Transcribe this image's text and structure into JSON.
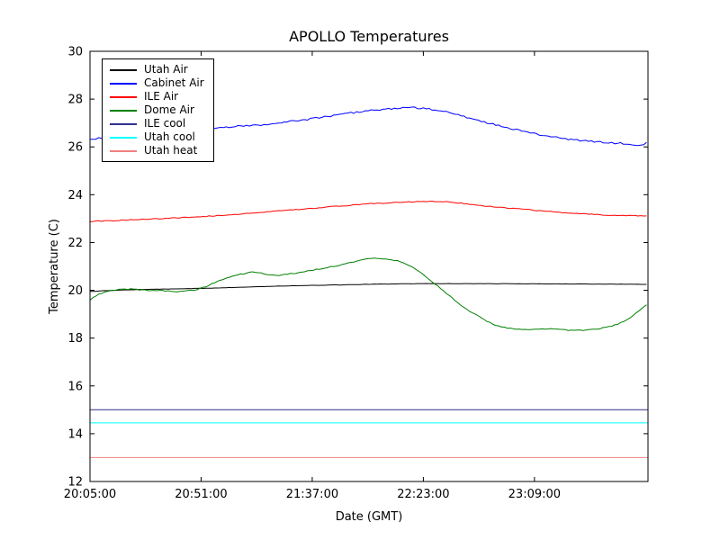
{
  "page": {
    "background": "#ffffff"
  },
  "chart_data": {
    "type": "line",
    "title": "APOLLO Temperatures",
    "xlabel": "Date (GMT)",
    "ylabel": "Temperature (C)",
    "x_unit": "minutes since 20:05:00 GMT",
    "xlim": [
      0,
      231
    ],
    "ylim": [
      12,
      30
    ],
    "grid": false,
    "legend_position": "upper-left",
    "x_ticks": [
      {
        "pos": 0,
        "label": "20:05:00"
      },
      {
        "pos": 46,
        "label": "20:51:00"
      },
      {
        "pos": 92,
        "label": "21:37:00"
      },
      {
        "pos": 138,
        "label": "22:23:00"
      },
      {
        "pos": 184,
        "label": "23:09:00"
      }
    ],
    "y_ticks": [
      {
        "pos": 12,
        "label": "12"
      },
      {
        "pos": 14,
        "label": "14"
      },
      {
        "pos": 16,
        "label": "16"
      },
      {
        "pos": 18,
        "label": "18"
      },
      {
        "pos": 20,
        "label": "20"
      },
      {
        "pos": 22,
        "label": "22"
      },
      {
        "pos": 24,
        "label": "24"
      },
      {
        "pos": 26,
        "label": "26"
      },
      {
        "pos": 28,
        "label": "28"
      },
      {
        "pos": 30,
        "label": "30"
      }
    ],
    "series": [
      {
        "name": "Utah Air",
        "color": "#000000",
        "noise": 0.006,
        "points": [
          [
            0,
            19.95
          ],
          [
            10,
            20.0
          ],
          [
            20,
            20.03
          ],
          [
            30,
            20.05
          ],
          [
            46,
            20.08
          ],
          [
            60,
            20.12
          ],
          [
            80,
            20.18
          ],
          [
            100,
            20.22
          ],
          [
            120,
            20.26
          ],
          [
            138,
            20.28
          ],
          [
            160,
            20.28
          ],
          [
            184,
            20.27
          ],
          [
            210,
            20.26
          ],
          [
            231,
            20.25
          ]
        ]
      },
      {
        "name": "Cabinet Air",
        "color": "#0000ff",
        "noise": 0.035,
        "points": [
          [
            0,
            26.32
          ],
          [
            8,
            26.4
          ],
          [
            16,
            26.45
          ],
          [
            24,
            26.52
          ],
          [
            32,
            26.6
          ],
          [
            40,
            26.68
          ],
          [
            46,
            26.72
          ],
          [
            54,
            26.8
          ],
          [
            62,
            26.88
          ],
          [
            70,
            26.92
          ],
          [
            78,
            27.0
          ],
          [
            86,
            27.1
          ],
          [
            92,
            27.18
          ],
          [
            100,
            27.3
          ],
          [
            108,
            27.42
          ],
          [
            116,
            27.52
          ],
          [
            122,
            27.58
          ],
          [
            128,
            27.62
          ],
          [
            133,
            27.65
          ],
          [
            138,
            27.6
          ],
          [
            143,
            27.55
          ],
          [
            148,
            27.45
          ],
          [
            153,
            27.32
          ],
          [
            158,
            27.18
          ],
          [
            163,
            27.05
          ],
          [
            168,
            26.92
          ],
          [
            173,
            26.8
          ],
          [
            178,
            26.68
          ],
          [
            184,
            26.55
          ],
          [
            190,
            26.45
          ],
          [
            196,
            26.35
          ],
          [
            202,
            26.28
          ],
          [
            208,
            26.22
          ],
          [
            214,
            26.18
          ],
          [
            220,
            26.15
          ],
          [
            225,
            26.1
          ],
          [
            228,
            26.05
          ],
          [
            231,
            26.2
          ]
        ]
      },
      {
        "name": "ILE Air",
        "color": "#ff0000",
        "noise": 0.018,
        "points": [
          [
            0,
            22.88
          ],
          [
            10,
            22.92
          ],
          [
            20,
            22.96
          ],
          [
            30,
            23.0
          ],
          [
            40,
            23.05
          ],
          [
            46,
            23.08
          ],
          [
            56,
            23.15
          ],
          [
            66,
            23.22
          ],
          [
            76,
            23.3
          ],
          [
            86,
            23.38
          ],
          [
            92,
            23.42
          ],
          [
            100,
            23.5
          ],
          [
            108,
            23.56
          ],
          [
            116,
            23.62
          ],
          [
            124,
            23.66
          ],
          [
            132,
            23.7
          ],
          [
            140,
            23.72
          ],
          [
            148,
            23.7
          ],
          [
            156,
            23.62
          ],
          [
            164,
            23.52
          ],
          [
            172,
            23.45
          ],
          [
            178,
            23.4
          ],
          [
            184,
            23.35
          ],
          [
            192,
            23.28
          ],
          [
            200,
            23.22
          ],
          [
            208,
            23.18
          ],
          [
            216,
            23.14
          ],
          [
            224,
            23.12
          ],
          [
            231,
            23.12
          ]
        ]
      },
      {
        "name": "Dome Air",
        "color": "#007f00",
        "noise": 0.02,
        "points": [
          [
            0,
            19.6
          ],
          [
            4,
            19.85
          ],
          [
            8,
            19.98
          ],
          [
            12,
            20.03
          ],
          [
            16,
            20.05
          ],
          [
            20,
            20.03
          ],
          [
            24,
            20.0
          ],
          [
            28,
            20.0
          ],
          [
            32,
            19.97
          ],
          [
            36,
            19.95
          ],
          [
            40,
            19.97
          ],
          [
            44,
            20.02
          ],
          [
            48,
            20.15
          ],
          [
            52,
            20.35
          ],
          [
            56,
            20.5
          ],
          [
            60,
            20.62
          ],
          [
            64,
            20.7
          ],
          [
            68,
            20.78
          ],
          [
            71,
            20.72
          ],
          [
            74,
            20.63
          ],
          [
            78,
            20.62
          ],
          [
            82,
            20.68
          ],
          [
            86,
            20.72
          ],
          [
            90,
            20.8
          ],
          [
            94,
            20.88
          ],
          [
            98,
            20.95
          ],
          [
            102,
            21.03
          ],
          [
            106,
            21.12
          ],
          [
            110,
            21.22
          ],
          [
            114,
            21.3
          ],
          [
            118,
            21.35
          ],
          [
            121,
            21.33
          ],
          [
            124,
            21.3
          ],
          [
            128,
            21.22
          ],
          [
            131,
            21.1
          ],
          [
            134,
            20.95
          ],
          [
            137,
            20.75
          ],
          [
            140,
            20.5
          ],
          [
            143,
            20.25
          ],
          [
            146,
            20.0
          ],
          [
            149,
            19.75
          ],
          [
            152,
            19.5
          ],
          [
            155,
            19.28
          ],
          [
            158,
            19.08
          ],
          [
            161,
            18.9
          ],
          [
            164,
            18.72
          ],
          [
            167,
            18.58
          ],
          [
            170,
            18.48
          ],
          [
            173,
            18.42
          ],
          [
            176,
            18.38
          ],
          [
            180,
            18.35
          ],
          [
            184,
            18.35
          ],
          [
            188,
            18.38
          ],
          [
            192,
            18.4
          ],
          [
            196,
            18.35
          ],
          [
            200,
            18.32
          ],
          [
            204,
            18.33
          ],
          [
            208,
            18.36
          ],
          [
            212,
            18.42
          ],
          [
            216,
            18.5
          ],
          [
            219,
            18.6
          ],
          [
            222,
            18.75
          ],
          [
            225,
            18.95
          ],
          [
            228,
            19.2
          ],
          [
            231,
            19.45
          ]
        ]
      },
      {
        "name": "ILE cool",
        "color": "#2f2f8f",
        "noise": 0,
        "points": [
          [
            0,
            15.0
          ],
          [
            231,
            15.0
          ]
        ]
      },
      {
        "name": "Utah cool",
        "color": "#00ffff",
        "noise": 0,
        "points": [
          [
            0,
            14.45
          ],
          [
            231,
            14.45
          ]
        ]
      },
      {
        "name": "Utah heat",
        "color": "#f08080",
        "noise": 0,
        "points": [
          [
            0,
            13.0
          ],
          [
            231,
            13.0
          ]
        ]
      }
    ]
  }
}
